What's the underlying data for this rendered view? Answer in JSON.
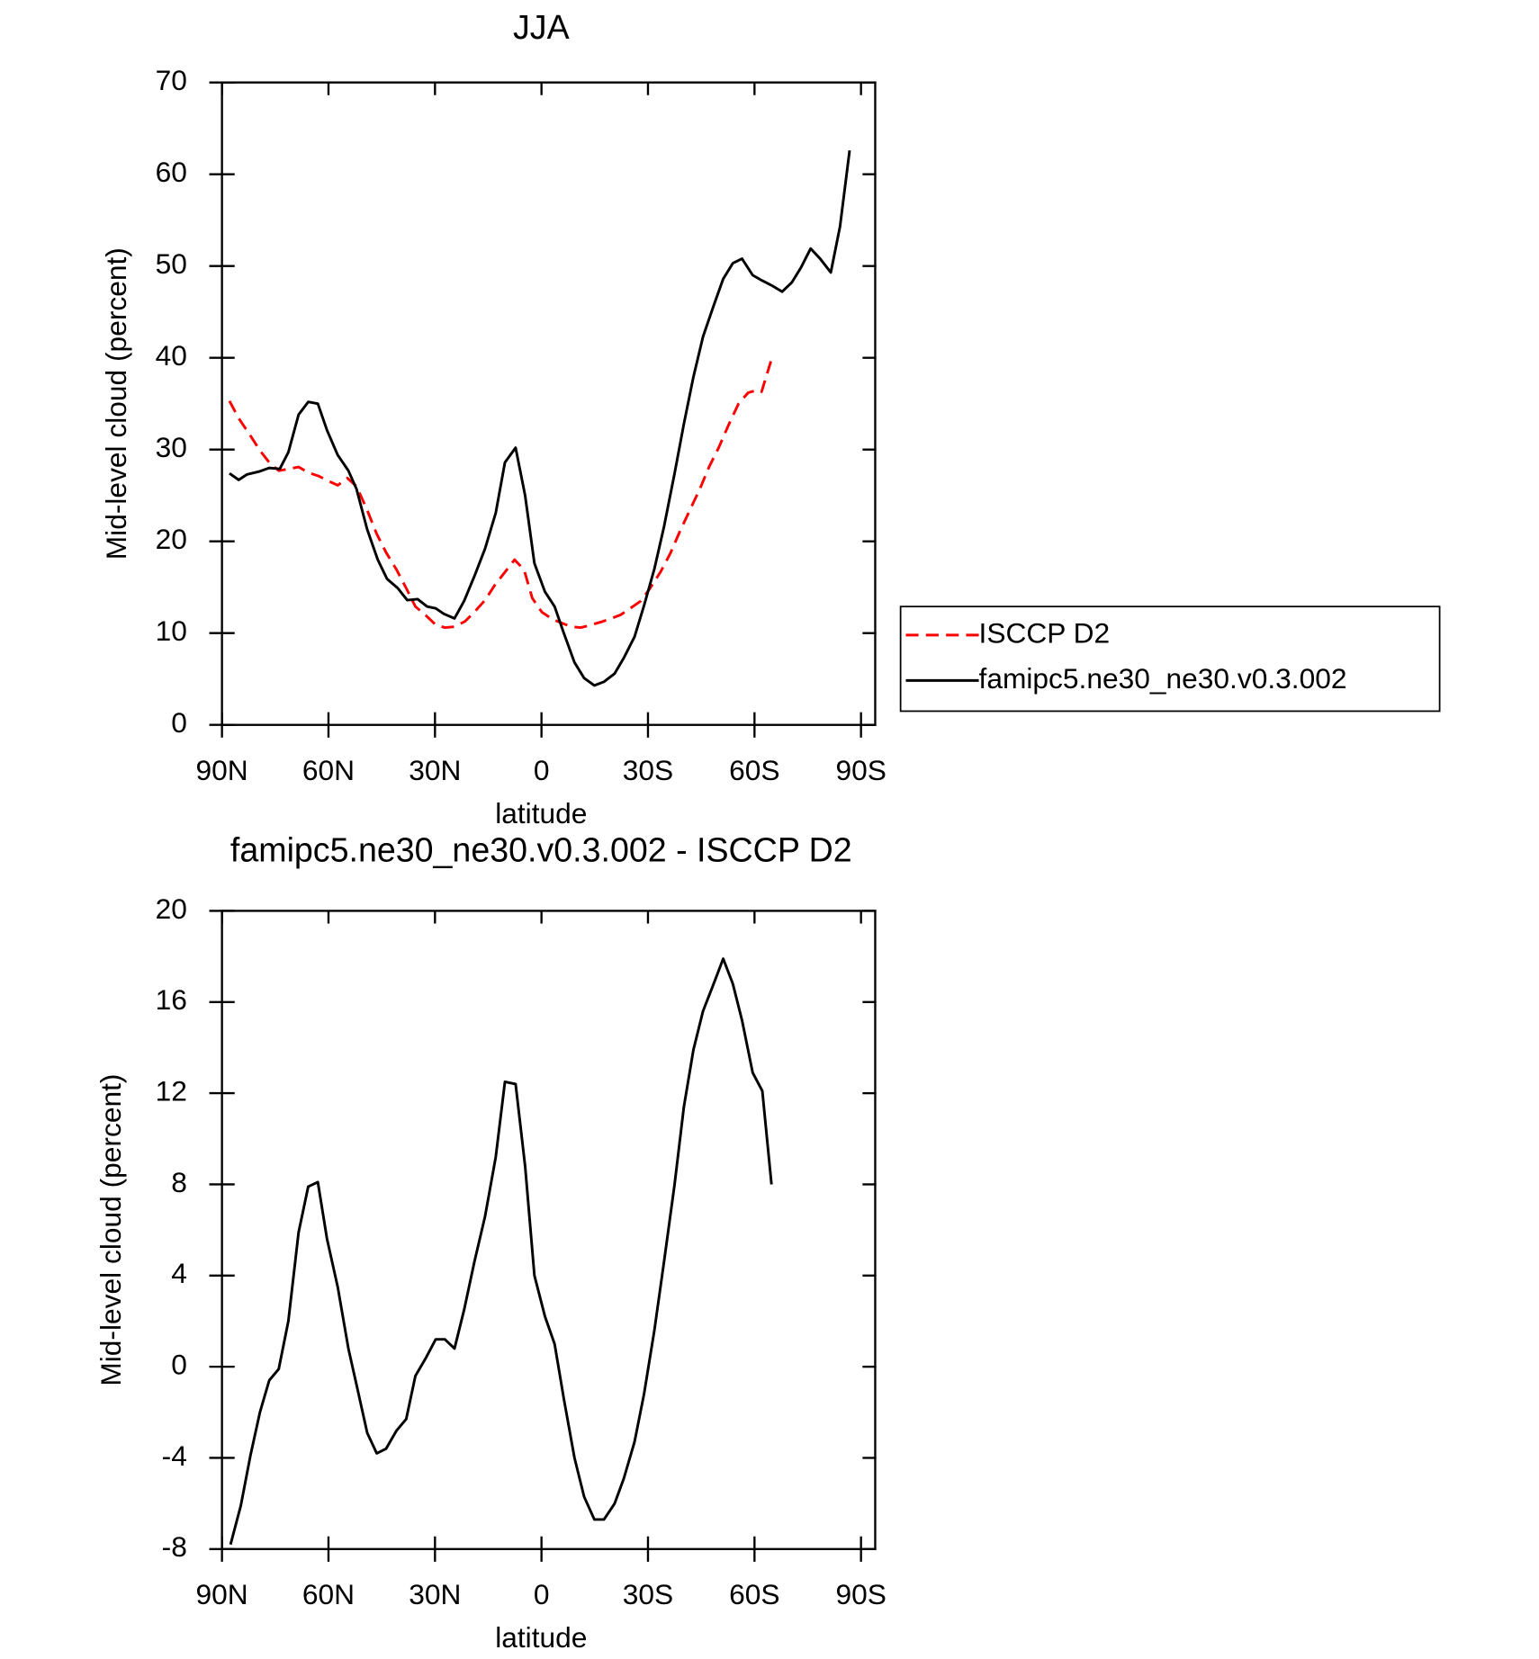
{
  "chart_data": [
    {
      "type": "line",
      "title": "JJA",
      "xlabel": "latitude",
      "ylabel": "Mid-level cloud (percent)",
      "xlim": [
        90,
        -94
      ],
      "ylim": [
        0,
        70
      ],
      "xticks": [
        {
          "value": 90,
          "label": "90N"
        },
        {
          "value": 60,
          "label": "60N"
        },
        {
          "value": 30,
          "label": "30N"
        },
        0,
        {
          "value": -30,
          "label": "30S"
        },
        {
          "value": -60,
          "label": "60S"
        },
        {
          "value": -90,
          "label": "90S"
        }
      ],
      "yticks": [
        0,
        10,
        20,
        30,
        40,
        50,
        60,
        70
      ],
      "legend": "right",
      "series": [
        {
          "name": "ISCCP D2",
          "color": "#ff0000",
          "dashed": true,
          "x": [
            87.9,
            85.3,
            82.3,
            79.3,
            76.7,
            74.0,
            71.0,
            68.4,
            65.7,
            62.7,
            60.1,
            57.4,
            54.7,
            52.1,
            49.1,
            46.4,
            43.8,
            40.8,
            38.1,
            35.5,
            32.5,
            29.8,
            27.2,
            24.5,
            21.5,
            18.9,
            15.9,
            13.2,
            10.6,
            7.6,
            4.9,
            2.6,
            -0.1,
            -3.1,
            -5.7,
            -8.4,
            -11.1,
            -14.0,
            -16.7,
            -19.7,
            -22.3,
            -25.0,
            -28.0,
            -30.6,
            -33.6,
            -36.3,
            -38.9,
            -41.9,
            -44.6,
            -47.2,
            -49.9,
            -52.6,
            -55.5,
            -58.2,
            -60.9,
            -62.0,
            -65.0
          ],
          "values": [
            35.3,
            33.4,
            31.7,
            29.9,
            28.6,
            27.7,
            27.9,
            28.1,
            27.5,
            27.1,
            26.6,
            26.1,
            26.9,
            26.0,
            23.4,
            20.8,
            18.8,
            16.9,
            14.9,
            12.9,
            11.9,
            10.9,
            10.6,
            10.7,
            11.3,
            12.3,
            13.6,
            15.2,
            16.5,
            18.0,
            16.9,
            13.8,
            12.3,
            11.5,
            11.1,
            10.7,
            10.6,
            10.9,
            11.2,
            11.6,
            12.0,
            12.7,
            13.5,
            14.9,
            16.7,
            18.7,
            21.0,
            23.5,
            25.7,
            28.1,
            30.2,
            32.6,
            35.0,
            36.2,
            36.5,
            36.3,
            40.1
          ]
        },
        {
          "name": "famipc5.ne30_ne30.v0.3.002",
          "color": "#000000",
          "dashed": false,
          "x": [
            87.9,
            85.3,
            82.9,
            79.6,
            76.7,
            73.7,
            71.3,
            68.4,
            65.7,
            63.0,
            60.4,
            57.4,
            54.4,
            52.1,
            49.1,
            46.1,
            43.5,
            40.5,
            37.8,
            34.9,
            32.2,
            29.8,
            27.5,
            24.5,
            21.8,
            18.9,
            15.9,
            12.9,
            10.3,
            7.3,
            4.6,
            2.0,
            -1.0,
            -3.7,
            -6.3,
            -9.3,
            -12.0,
            -14.9,
            -17.6,
            -20.6,
            -23.2,
            -26.2,
            -28.9,
            -31.8,
            -34.5,
            -37.5,
            -40.1,
            -42.8,
            -45.5,
            -48.5,
            -51.2,
            -53.9,
            -56.5,
            -59.5,
            -62.2,
            -64.8,
            -67.8,
            -70.5,
            -73.2,
            -75.8,
            -78.5,
            -81.5,
            -84.1,
            -86.8
          ],
          "values": [
            27.4,
            26.7,
            27.3,
            27.6,
            28.0,
            27.9,
            29.7,
            33.8,
            35.2,
            35.0,
            32.1,
            29.4,
            27.7,
            25.7,
            21.3,
            18.0,
            15.9,
            14.9,
            13.6,
            13.7,
            12.9,
            12.7,
            12.1,
            11.6,
            13.5,
            16.2,
            19.2,
            23.1,
            28.6,
            30.2,
            25.0,
            17.6,
            14.5,
            12.9,
            10.0,
            6.8,
            5.1,
            4.3,
            4.7,
            5.6,
            7.3,
            9.6,
            13.0,
            17.0,
            21.6,
            27.4,
            32.8,
            37.9,
            42.3,
            45.7,
            48.6,
            50.3,
            50.8,
            49.0,
            48.4,
            47.9,
            47.2,
            48.2,
            49.9,
            51.9,
            50.8,
            49.3,
            54.3,
            62.6
          ]
        }
      ]
    },
    {
      "type": "line",
      "title": "famipc5.ne30_ne30.v0.3.002 - ISCCP D2",
      "xlabel": "latitude",
      "ylabel": "Mid-level cloud (percent)",
      "xlim": [
        90,
        -94
      ],
      "ylim": [
        -8,
        20
      ],
      "xticks": [
        {
          "value": 90,
          "label": "90N"
        },
        {
          "value": 60,
          "label": "60N"
        },
        {
          "value": 30,
          "label": "30N"
        },
        0,
        {
          "value": -30,
          "label": "30S"
        },
        {
          "value": -60,
          "label": "60S"
        },
        {
          "value": -90,
          "label": "90S"
        }
      ],
      "yticks": [
        -8,
        -4,
        0,
        4,
        8,
        12,
        16,
        20
      ],
      "series": [
        {
          "color": "#000000",
          "dashed": false,
          "x": [
            87.6,
            84.7,
            82.0,
            79.3,
            76.7,
            74.0,
            71.3,
            68.4,
            65.7,
            63.0,
            60.4,
            57.4,
            54.4,
            51.8,
            49.1,
            46.4,
            43.8,
            40.8,
            38.1,
            35.5,
            32.5,
            29.8,
            27.2,
            24.5,
            21.8,
            18.9,
            15.9,
            12.9,
            10.3,
            7.3,
            4.6,
            2.0,
            -1.0,
            -3.7,
            -6.3,
            -9.3,
            -12.0,
            -14.9,
            -17.6,
            -20.6,
            -23.2,
            -26.2,
            -28.9,
            -31.8,
            -34.5,
            -37.5,
            -40.1,
            -42.8,
            -45.5,
            -48.5,
            -51.2,
            -53.9,
            -56.5,
            -59.5,
            -62.2,
            -64.8
          ],
          "values": [
            -7.8,
            -6.1,
            -3.9,
            -2.0,
            -0.6,
            -0.1,
            2.0,
            5.9,
            7.9,
            8.1,
            5.6,
            3.5,
            0.8,
            -1.0,
            -2.9,
            -3.8,
            -3.6,
            -2.8,
            -2.3,
            -0.4,
            0.4,
            1.2,
            1.2,
            0.8,
            2.5,
            4.6,
            6.6,
            9.2,
            12.5,
            12.4,
            8.8,
            4.0,
            2.2,
            1.0,
            -1.4,
            -4.0,
            -5.7,
            -6.7,
            -6.7,
            -6.0,
            -4.9,
            -3.3,
            -1.2,
            1.6,
            4.6,
            8.0,
            11.4,
            13.9,
            15.6,
            16.8,
            17.9,
            16.8,
            15.2,
            12.9,
            12.1,
            8.0
          ]
        }
      ]
    }
  ]
}
